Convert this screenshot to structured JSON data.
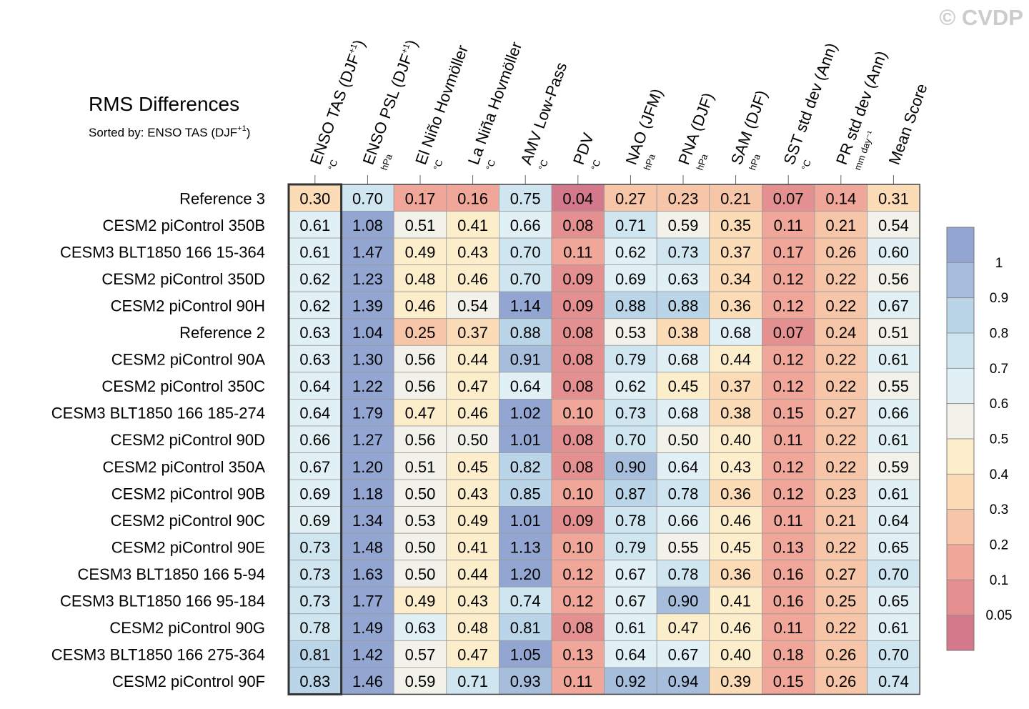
{
  "watermark": "© CVDP",
  "chart_data": {
    "type": "heatmap",
    "title": "RMS Differences",
    "subtitle": "Sorted by: ENSO TAS (DJF",
    "subtitle_sup": "+1",
    "subtitle_end": ")",
    "columns": [
      {
        "label": "ENSO TAS (DJF",
        "sup": "+1",
        "end": ")",
        "unit": "°C"
      },
      {
        "label": "ENSO PSL (DJF",
        "sup": "+1",
        "end": ")",
        "unit": "hPa"
      },
      {
        "label": "El Niño Hovmöller",
        "sup": "",
        "end": "",
        "unit": "°C"
      },
      {
        "label": "La Niña Hovmöller",
        "sup": "",
        "end": "",
        "unit": "°C"
      },
      {
        "label": "AMV Low-Pass",
        "sup": "",
        "end": "",
        "unit": "°C"
      },
      {
        "label": "PDV",
        "sup": "",
        "end": "",
        "unit": "°C"
      },
      {
        "label": "NAO (JFM)",
        "sup": "",
        "end": "",
        "unit": "hPa"
      },
      {
        "label": "PNA (DJF)",
        "sup": "",
        "end": "",
        "unit": "hPa"
      },
      {
        "label": "SAM (DJF)",
        "sup": "",
        "end": "",
        "unit": "hPa"
      },
      {
        "label": "SST std dev (Ann)",
        "sup": "",
        "end": "",
        "unit": "°C"
      },
      {
        "label": "PR std dev (Ann)",
        "sup": "",
        "end": "",
        "unit": "mm day⁻¹"
      },
      {
        "label": "Mean Score",
        "sup": "",
        "end": "",
        "unit": ""
      }
    ],
    "rows": [
      {
        "name": "Reference 3",
        "values": [
          "0.30",
          "0.70",
          "0.17",
          "0.16",
          "0.75",
          "0.04",
          "0.27",
          "0.23",
          "0.21",
          "0.07",
          "0.14",
          "0.31"
        ]
      },
      {
        "name": "CESM2 piControl 350B",
        "values": [
          "0.61",
          "1.08",
          "0.51",
          "0.41",
          "0.66",
          "0.08",
          "0.71",
          "0.59",
          "0.35",
          "0.11",
          "0.21",
          "0.54"
        ]
      },
      {
        "name": "CESM3 BLT1850 166 15-364",
        "values": [
          "0.61",
          "1.47",
          "0.49",
          "0.43",
          "0.70",
          "0.11",
          "0.62",
          "0.73",
          "0.37",
          "0.17",
          "0.26",
          "0.60"
        ]
      },
      {
        "name": "CESM2 piControl 350D",
        "values": [
          "0.62",
          "1.23",
          "0.48",
          "0.46",
          "0.70",
          "0.09",
          "0.69",
          "0.63",
          "0.34",
          "0.12",
          "0.22",
          "0.56"
        ]
      },
      {
        "name": "CESM2 piControl 90H",
        "values": [
          "0.62",
          "1.39",
          "0.46",
          "0.54",
          "1.14",
          "0.09",
          "0.88",
          "0.88",
          "0.36",
          "0.12",
          "0.22",
          "0.67"
        ]
      },
      {
        "name": "Reference 2",
        "values": [
          "0.63",
          "1.04",
          "0.25",
          "0.37",
          "0.88",
          "0.08",
          "0.53",
          "0.38",
          "0.68",
          "0.07",
          "0.24",
          "0.51"
        ]
      },
      {
        "name": "CESM2 piControl 90A",
        "values": [
          "0.63",
          "1.30",
          "0.56",
          "0.44",
          "0.91",
          "0.08",
          "0.79",
          "0.68",
          "0.44",
          "0.12",
          "0.22",
          "0.61"
        ]
      },
      {
        "name": "CESM2 piControl 350C",
        "values": [
          "0.64",
          "1.22",
          "0.56",
          "0.47",
          "0.64",
          "0.08",
          "0.62",
          "0.45",
          "0.37",
          "0.12",
          "0.22",
          "0.55"
        ]
      },
      {
        "name": "CESM3 BLT1850 166 185-274",
        "values": [
          "0.64",
          "1.79",
          "0.47",
          "0.46",
          "1.02",
          "0.10",
          "0.73",
          "0.68",
          "0.38",
          "0.15",
          "0.27",
          "0.66"
        ]
      },
      {
        "name": "CESM2 piControl 90D",
        "values": [
          "0.66",
          "1.27",
          "0.56",
          "0.50",
          "1.01",
          "0.08",
          "0.70",
          "0.50",
          "0.40",
          "0.11",
          "0.22",
          "0.61"
        ]
      },
      {
        "name": "CESM2 piControl 350A",
        "values": [
          "0.67",
          "1.20",
          "0.51",
          "0.45",
          "0.82",
          "0.08",
          "0.90",
          "0.64",
          "0.43",
          "0.12",
          "0.22",
          "0.59"
        ]
      },
      {
        "name": "CESM2 piControl 90B",
        "values": [
          "0.69",
          "1.18",
          "0.50",
          "0.43",
          "0.85",
          "0.10",
          "0.87",
          "0.78",
          "0.36",
          "0.12",
          "0.23",
          "0.61"
        ]
      },
      {
        "name": "CESM2 piControl 90C",
        "values": [
          "0.69",
          "1.34",
          "0.53",
          "0.49",
          "1.01",
          "0.09",
          "0.78",
          "0.66",
          "0.46",
          "0.11",
          "0.21",
          "0.64"
        ]
      },
      {
        "name": "CESM2 piControl 90E",
        "values": [
          "0.73",
          "1.48",
          "0.50",
          "0.41",
          "1.13",
          "0.10",
          "0.79",
          "0.55",
          "0.45",
          "0.13",
          "0.22",
          "0.65"
        ]
      },
      {
        "name": "CESM3 BLT1850 166 5-94",
        "values": [
          "0.73",
          "1.63",
          "0.50",
          "0.44",
          "1.20",
          "0.12",
          "0.67",
          "0.78",
          "0.36",
          "0.16",
          "0.27",
          "0.70"
        ]
      },
      {
        "name": "CESM3 BLT1850 166 95-184",
        "values": [
          "0.73",
          "1.77",
          "0.49",
          "0.43",
          "0.74",
          "0.12",
          "0.67",
          "0.90",
          "0.41",
          "0.16",
          "0.25",
          "0.65"
        ]
      },
      {
        "name": "CESM2 piControl 90G",
        "values": [
          "0.78",
          "1.49",
          "0.63",
          "0.48",
          "0.81",
          "0.08",
          "0.61",
          "0.47",
          "0.46",
          "0.11",
          "0.22",
          "0.61"
        ]
      },
      {
        "name": "CESM3 BLT1850 166 275-364",
        "values": [
          "0.81",
          "1.42",
          "0.57",
          "0.47",
          "1.05",
          "0.13",
          "0.64",
          "0.67",
          "0.40",
          "0.18",
          "0.26",
          "0.70"
        ]
      },
      {
        "name": "CESM2 piControl 90F",
        "values": [
          "0.83",
          "1.46",
          "0.59",
          "0.71",
          "0.93",
          "0.11",
          "0.92",
          "0.94",
          "0.39",
          "0.15",
          "0.26",
          "0.74"
        ]
      }
    ],
    "sorted_column_index": 0,
    "colorbar": {
      "boundaries": [
        0.05,
        0.1,
        0.2,
        0.3,
        0.4,
        0.5,
        0.6,
        0.7,
        0.8,
        0.9,
        1
      ],
      "labels": [
        "1",
        "0.9",
        "0.8",
        "0.7",
        "0.6",
        "0.5",
        "0.4",
        "0.3",
        "0.2",
        "0.1",
        "0.05"
      ],
      "colors_low_to_high": [
        "#d4798b",
        "#e49090",
        "#f0a79a",
        "#f7c6a8",
        "#fcdcb6",
        "#fdeecb",
        "#f2f2ea",
        "#e1f0f5",
        "#cfe6f0",
        "#bad5e8",
        "#a6bedc",
        "#93a6d2"
      ]
    }
  }
}
